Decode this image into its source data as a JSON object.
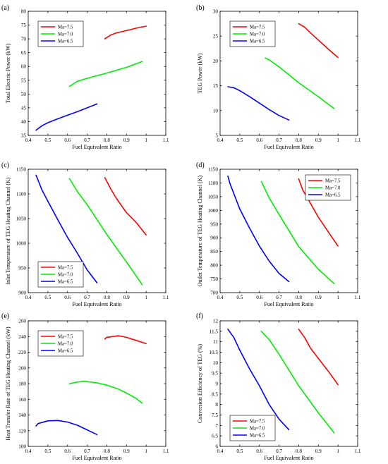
{
  "chart_data": [
    {
      "type": "line",
      "panel_label": "(a)",
      "xlabel": "Fuel Equivalent Ratio",
      "ylabel": "Total Electric Power (kW)",
      "xlim": [
        0.4,
        1.1
      ],
      "ylim": [
        35,
        80
      ],
      "xticks": [
        0.4,
        0.5,
        0.6,
        0.7,
        0.8,
        0.9,
        1,
        1.1
      ],
      "xtick_labels": [
        "0.4",
        "0.5",
        "0.6",
        "0.7",
        "0.8",
        "0.9",
        "1",
        "1.1"
      ],
      "yticks": [
        35,
        40,
        45,
        50,
        55,
        60,
        65,
        70,
        75,
        80
      ],
      "ytick_labels": [
        "35",
        "40",
        "45",
        "50",
        "55",
        "60",
        "65",
        "70",
        "75",
        "80"
      ],
      "legend": "top-left",
      "series": [
        {
          "name": "Ma=7.5",
          "color": "#ff0000",
          "x": [
            0.79,
            0.82,
            0.85,
            0.9,
            0.95,
            1.0
          ],
          "y": [
            70.0,
            71.4,
            72.2,
            73.0,
            73.9,
            74.6
          ]
        },
        {
          "name": "Ma=7.0",
          "color": "#00ee00",
          "x": [
            0.61,
            0.65,
            0.7,
            0.8,
            0.9,
            0.98
          ],
          "y": [
            52.8,
            54.6,
            55.7,
            57.6,
            59.7,
            61.8
          ]
        },
        {
          "name": "Ma=6.5",
          "color": "#0000ff",
          "x": [
            0.44,
            0.47,
            0.5,
            0.55,
            0.6,
            0.65,
            0.7,
            0.75
          ],
          "y": [
            36.9,
            38.5,
            39.6,
            41.0,
            42.3,
            43.6,
            45.0,
            46.4
          ]
        }
      ]
    },
    {
      "type": "line",
      "panel_label": "(b)",
      "xlabel": "Fuel Equivalent Ratio",
      "ylabel": "TEG Power (kW)",
      "xlim": [
        0.4,
        1.1
      ],
      "ylim": [
        5,
        30
      ],
      "xticks": [
        0.4,
        0.5,
        0.6,
        0.7,
        0.8,
        0.9,
        1,
        1.1
      ],
      "xtick_labels": [
        "0.4",
        "0.5",
        "0.6",
        "0.7",
        "0.8",
        "0.9",
        "1",
        "1.1"
      ],
      "yticks": [
        5,
        10,
        15,
        20,
        25,
        30
      ],
      "ytick_labels": [
        "5",
        "10",
        "15",
        "20",
        "25",
        "30"
      ],
      "legend": "top-left",
      "series": [
        {
          "name": "Ma=7.5",
          "color": "#ff0000",
          "x": [
            0.8,
            0.83,
            0.85,
            0.9,
            0.95,
            1.0
          ],
          "y": [
            27.5,
            26.8,
            26.0,
            24.2,
            22.4,
            20.7
          ]
        },
        {
          "name": "Ma=7.0",
          "color": "#00ee00",
          "x": [
            0.63,
            0.65,
            0.7,
            0.8,
            0.9,
            0.98
          ],
          "y": [
            20.6,
            20.2,
            18.8,
            15.6,
            12.8,
            10.4
          ]
        },
        {
          "name": "Ma=6.5",
          "color": "#0000ff",
          "x": [
            0.44,
            0.47,
            0.5,
            0.55,
            0.6,
            0.65,
            0.7,
            0.75
          ],
          "y": [
            14.8,
            14.6,
            14.0,
            12.8,
            11.5,
            10.2,
            9.0,
            8.1
          ]
        }
      ]
    },
    {
      "type": "line",
      "panel_label": "(c)",
      "xlabel": "Fuel Equivalent Ratio",
      "ylabel": "Inlet Temperature of TEG Heating Channel (K)",
      "xlim": [
        0.4,
        1.1
      ],
      "ylim": [
        900,
        1150
      ],
      "xticks": [
        0.4,
        0.5,
        0.6,
        0.7,
        0.8,
        0.9,
        1,
        1.1
      ],
      "xtick_labels": [
        "0.4",
        "0.5",
        "0.6",
        "0.7",
        "0.8",
        "0.9",
        "1",
        "1.1"
      ],
      "yticks": [
        900,
        950,
        1000,
        1050,
        1100,
        1150
      ],
      "ytick_labels": [
        "900",
        "950",
        "1000",
        "1050",
        "1100",
        "1150"
      ],
      "legend": "bottom-left",
      "series": [
        {
          "name": "Ma=7.5",
          "color": "#ff0000",
          "x": [
            0.79,
            0.82,
            0.85,
            0.9,
            0.95,
            1.0
          ],
          "y": [
            1133,
            1110,
            1090,
            1062,
            1042,
            1017
          ]
        },
        {
          "name": "Ma=7.0",
          "color": "#00ee00",
          "x": [
            0.61,
            0.65,
            0.7,
            0.8,
            0.9,
            0.98
          ],
          "y": [
            1131,
            1105,
            1078,
            1018,
            962,
            916
          ]
        },
        {
          "name": "Ma=6.5",
          "color": "#0000ff",
          "x": [
            0.44,
            0.47,
            0.5,
            0.55,
            0.6,
            0.65,
            0.7,
            0.75
          ],
          "y": [
            1138,
            1108,
            1085,
            1048,
            1012,
            980,
            946,
            920
          ]
        }
      ]
    },
    {
      "type": "line",
      "panel_label": "(d)",
      "xlabel": "Fuel Equivalent Ratio",
      "ylabel": "Outlet Temperature of TEG Heating Channel (K)",
      "xlim": [
        0.4,
        1.1
      ],
      "ylim": [
        700,
        1150
      ],
      "xticks": [
        0.4,
        0.5,
        0.6,
        0.7,
        0.8,
        0.9,
        1,
        1.1
      ],
      "xtick_labels": [
        "0.4",
        "0.5",
        "0.6",
        "0.7",
        "0.8",
        "0.9",
        "1",
        "1.1"
      ],
      "yticks": [
        700,
        750,
        800,
        850,
        900,
        950,
        1000,
        1050,
        1100,
        1150
      ],
      "ytick_labels": [
        "700",
        "750",
        "800",
        "850",
        "900",
        "950",
        "1000",
        "1050",
        "1100",
        "1150"
      ],
      "legend": "top-right",
      "series": [
        {
          "name": "Ma=7.5",
          "color": "#ff0000",
          "x": [
            0.8,
            0.82,
            0.85,
            0.9,
            0.95,
            1.0
          ],
          "y": [
            1115,
            1075,
            1038,
            975,
            922,
            870
          ]
        },
        {
          "name": "Ma=7.0",
          "color": "#00ee00",
          "x": [
            0.61,
            0.65,
            0.7,
            0.8,
            0.9,
            0.98
          ],
          "y": [
            1105,
            1045,
            985,
            868,
            785,
            733
          ]
        },
        {
          "name": "Ma=6.5",
          "color": "#0000ff",
          "x": [
            0.44,
            0.45,
            0.5,
            0.55,
            0.6,
            0.65,
            0.7,
            0.75
          ],
          "y": [
            1125,
            1098,
            1005,
            935,
            870,
            815,
            770,
            740
          ]
        }
      ]
    },
    {
      "type": "line",
      "panel_label": "(e)",
      "xlabel": "Fuel Equivalent Ratio",
      "ylabel": "Heat Transfer Rate of TEG Heating Channel (kW)",
      "xlim": [
        0.4,
        1.1
      ],
      "ylim": [
        100,
        260
      ],
      "xticks": [
        0.4,
        0.5,
        0.6,
        0.7,
        0.8,
        0.9,
        1,
        1.1
      ],
      "xtick_labels": [
        "0.4",
        "0.5",
        "0.6",
        "0.7",
        "0.8",
        "0.9",
        "1",
        "1.1"
      ],
      "yticks": [
        100,
        120,
        140,
        160,
        180,
        200,
        220,
        240,
        260
      ],
      "ytick_labels": [
        "100",
        "120",
        "140",
        "160",
        "180",
        "200",
        "220",
        "240",
        "260"
      ],
      "legend": "top-left",
      "series": [
        {
          "name": "Ma=7.5",
          "color": "#ff0000",
          "x": [
            0.79,
            0.8,
            0.83,
            0.86,
            0.9,
            0.95,
            1.0
          ],
          "y": [
            237,
            239,
            240,
            241,
            239,
            235,
            231
          ]
        },
        {
          "name": "Ma=7.0",
          "color": "#00ee00",
          "x": [
            0.61,
            0.65,
            0.68,
            0.7,
            0.75,
            0.8,
            0.85,
            0.9,
            0.95,
            0.98
          ],
          "y": [
            180,
            182,
            183,
            182.5,
            181,
            178,
            174,
            168,
            161,
            155
          ]
        },
        {
          "name": "Ma=6.5",
          "color": "#0000ff",
          "x": [
            0.44,
            0.45,
            0.5,
            0.55,
            0.6,
            0.65,
            0.7,
            0.75
          ],
          "y": [
            126,
            129,
            132.5,
            133,
            131,
            127,
            121,
            115
          ]
        }
      ]
    },
    {
      "type": "line",
      "panel_label": "(f)",
      "xlabel": "Fuel Equivalent Ratio",
      "ylabel": "Conversion Efficiency of TEG (%)",
      "xlim": [
        0.4,
        1.1
      ],
      "ylim": [
        6,
        12
      ],
      "xticks": [
        0.4,
        0.5,
        0.6,
        0.7,
        0.8,
        0.9,
        1,
        1.1
      ],
      "xtick_labels": [
        "0.4",
        "0.5",
        "0.6",
        "0.7",
        "0.8",
        "0.9",
        "1",
        "1.1"
      ],
      "yticks": [
        6,
        6.5,
        7,
        7.5,
        8,
        8.5,
        9,
        9.5,
        10,
        10.5,
        11,
        11.5,
        12
      ],
      "ytick_labels": [
        "6",
        "6.5",
        "7",
        "7.5",
        "8",
        "8.5",
        "9",
        "9.5",
        "10",
        "10.5",
        "11",
        "11.5",
        "12"
      ],
      "legend": "bottom-left",
      "series": [
        {
          "name": "Ma=7.5",
          "color": "#ff0000",
          "x": [
            0.8,
            0.83,
            0.86,
            0.9,
            0.95,
            1.0
          ],
          "y": [
            11.6,
            11.2,
            10.7,
            10.2,
            9.6,
            8.95
          ]
        },
        {
          "name": "Ma=7.0",
          "color": "#00ee00",
          "x": [
            0.61,
            0.65,
            0.7,
            0.8,
            0.9,
            0.98
          ],
          "y": [
            11.5,
            11.1,
            10.4,
            8.9,
            7.6,
            6.65
          ]
        },
        {
          "name": "Ma=6.5",
          "color": "#0000ff",
          "x": [
            0.44,
            0.47,
            0.5,
            0.55,
            0.6,
            0.65,
            0.7,
            0.75
          ],
          "y": [
            11.6,
            11.2,
            10.6,
            9.7,
            8.9,
            8.0,
            7.3,
            6.8
          ]
        }
      ]
    }
  ]
}
